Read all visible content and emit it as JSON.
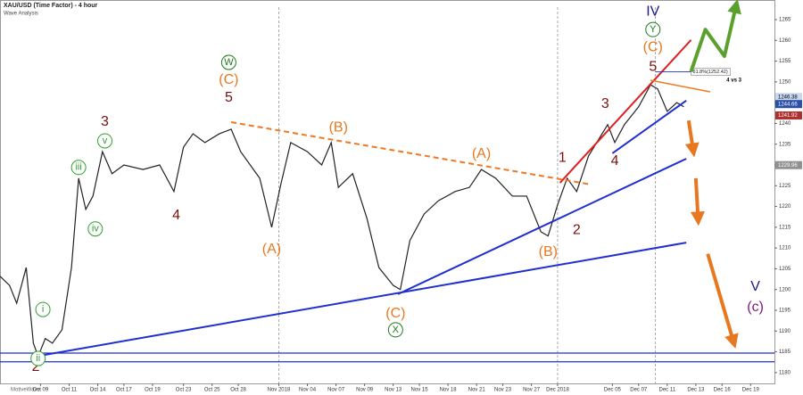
{
  "chart_data": {
    "type": "line",
    "title": "XAU/USD (Time Factor) - 4 hour",
    "subtitle": "Wave Analysis",
    "watermark": "MotiveWave",
    "xlim": [
      0,
      325
    ],
    "ylim": [
      1177.4,
      1268
    ],
    "xticks": [
      {
        "value": 17,
        "label": "Oct 09"
      },
      {
        "value": 29,
        "label": "Oct 11"
      },
      {
        "value": 41,
        "label": "Oct 14"
      },
      {
        "value": 52,
        "label": "Oct 17"
      },
      {
        "value": 64,
        "label": "Oct 19"
      },
      {
        "value": 77,
        "label": "Oct 23"
      },
      {
        "value": 89,
        "label": "Oct 25"
      },
      {
        "value": 100,
        "label": "Oct 28"
      },
      {
        "value": 117,
        "label": "Nov 2018"
      },
      {
        "value": 129,
        "label": "Nov 04"
      },
      {
        "value": 141,
        "label": "Nov 07"
      },
      {
        "value": 153,
        "label": "Nov 09"
      },
      {
        "value": 165,
        "label": "Nov 13"
      },
      {
        "value": 176,
        "label": "Nov 15"
      },
      {
        "value": 188,
        "label": "Nov 18"
      },
      {
        "value": 200,
        "label": "Nov 21"
      },
      {
        "value": 211,
        "label": "Nov 23"
      },
      {
        "value": 223,
        "label": "Nov 27"
      },
      {
        "value": 234,
        "label": "Dec 2018"
      },
      {
        "value": 257,
        "label": "Dec 05"
      },
      {
        "value": 268,
        "label": "Dec 07"
      },
      {
        "value": 280,
        "label": "Dec 11"
      },
      {
        "value": 292,
        "label": "Dec 13"
      },
      {
        "value": 303,
        "label": "Dec 16"
      },
      {
        "value": 315,
        "label": "Dec 19"
      }
    ],
    "yticks": [
      1180,
      1185,
      1190,
      1195,
      1200,
      1205,
      1210,
      1215,
      1220,
      1225,
      1230,
      1235,
      1240,
      1245,
      1250,
      1255,
      1260,
      1265
    ],
    "separators": [
      117,
      234,
      275
    ],
    "x": [
      0,
      4,
      7,
      11,
      14,
      16,
      19,
      22,
      26,
      30,
      33,
      36,
      39,
      43,
      47,
      52,
      60,
      67,
      73,
      77,
      81,
      86,
      92,
      97,
      101,
      109,
      114,
      118,
      122,
      129,
      135,
      139,
      142,
      148,
      154,
      159,
      165,
      168,
      172,
      178,
      184,
      191,
      197,
      202,
      208,
      215,
      221,
      227,
      230,
      234,
      238,
      242,
      247,
      255,
      258,
      262,
      268,
      273,
      276,
      280,
      284,
      287
    ],
    "series": [
      {
        "color": "#222222",
        "values": [
          1203.2,
          1201,
          1196.7,
          1205.3,
          1187.1,
          1183.9,
          1188.2,
          1187.1,
          1190.3,
          1205.3,
          1226.8,
          1219.3,
          1222.5,
          1233.2,
          1227.9,
          1230,
          1228.9,
          1230,
          1223.6,
          1234.3,
          1237.5,
          1235.4,
          1237.5,
          1238.6,
          1233.2,
          1226.8,
          1215,
          1225.7,
          1235.4,
          1233.2,
          1230,
          1235.4,
          1224.6,
          1227.9,
          1217.1,
          1205.3,
          1201,
          1200,
          1211.8,
          1218.2,
          1221.4,
          1223.6,
          1224.6,
          1228.9,
          1226.8,
          1222.5,
          1222.5,
          1213.9,
          1212.9,
          1220.4,
          1226.8,
          1223.6,
          1232.2,
          1239.7,
          1235.4,
          1239.7,
          1244,
          1249.3,
          1248.3,
          1242.9,
          1245,
          1244
        ]
      }
    ],
    "price_tags": [
      {
        "value": 1246.38,
        "color": "#c8d8f0"
      },
      {
        "value": 1244.66,
        "color": "#2a4fa8"
      },
      {
        "value": 1241.92,
        "color": "#b03030"
      },
      {
        "value": 1229.96,
        "color": "#909090"
      }
    ],
    "fib": {
      "value": 1252.42,
      "label": "61.8%(1252.42)",
      "x": [
        275,
        290
      ]
    },
    "trendlines": [
      {
        "color": "#1f2fd0",
        "width": 2,
        "points": [
          [
            15,
            1183.9
          ],
          [
            288,
            1211.3
          ]
        ]
      },
      {
        "color": "#1f2fd0",
        "width": 2,
        "points": [
          [
            167,
            1198.9
          ],
          [
            288,
            1231.5
          ]
        ]
      },
      {
        "color": "#1f2fd0",
        "width": 2,
        "points": [
          [
            257,
            1232.8
          ],
          [
            288,
            1245.5
          ]
        ]
      },
      {
        "color": "#1f2fd0",
        "width": 1.2,
        "points": [
          [
            0,
            1184.7
          ],
          [
            325,
            1184.7
          ]
        ]
      },
      {
        "color": "#1f2fd0",
        "width": 1.2,
        "points": [
          [
            0,
            1182.6
          ],
          [
            325,
            1182.6
          ]
        ]
      },
      {
        "color": "#f07820",
        "width": 2,
        "dash": true,
        "points": [
          [
            97,
            1240.3
          ],
          [
            248,
            1225.3
          ]
        ]
      },
      {
        "color": "#e02020",
        "width": 2,
        "points": [
          [
            235,
            1225.7
          ],
          [
            290,
            1260.1
          ]
        ]
      },
      {
        "color": "#f07820",
        "width": 1.5,
        "points": [
          [
            273,
            1250.4
          ],
          [
            298,
            1247.6
          ]
        ]
      }
    ],
    "arrows": [
      {
        "color": "#5aa02c",
        "points": [
          [
            290,
            1252.5
          ],
          [
            296,
            1262.6
          ],
          [
            304,
            1256.2
          ],
          [
            309,
            1268.6
          ]
        ]
      },
      {
        "color": "#e87820",
        "points": [
          [
            289,
            1240.7
          ],
          [
            291,
            1233.2
          ]
        ]
      },
      {
        "color": "#e87820",
        "points": [
          [
            292,
            1226.8
          ],
          [
            293,
            1216.7
          ]
        ]
      },
      {
        "color": "#e87820",
        "points": [
          [
            297,
            1208.6
          ],
          [
            308,
            1187.1
          ]
        ]
      }
    ],
    "annotations": [
      {
        "text": "2",
        "x": 15,
        "y": 1181.3,
        "color": "#7a1010"
      },
      {
        "text": "i",
        "x": 18,
        "y": 1195.2,
        "color": "#2ea02e",
        "circled": true
      },
      {
        "text": "ii",
        "x": 16,
        "y": 1183.4,
        "color": "#2ea02e",
        "circled": true
      },
      {
        "text": "iii",
        "x": 33,
        "y": 1229.4,
        "color": "#2ea02e",
        "circled": true
      },
      {
        "text": "iv",
        "x": 40,
        "y": 1214.6,
        "color": "#2ea02e",
        "circled": true
      },
      {
        "text": "v",
        "x": 44,
        "y": 1235.8,
        "color": "#2ea02e",
        "circled": true
      },
      {
        "text": "3",
        "x": 44,
        "y": 1240.3,
        "color": "#7a1010"
      },
      {
        "text": "4",
        "x": 74,
        "y": 1217.8,
        "color": "#7a1010"
      },
      {
        "text": "W",
        "x": 96,
        "y": 1254.7,
        "color": "#1a7a1a",
        "circled": true
      },
      {
        "text": "(C)",
        "x": 96,
        "y": 1250.4,
        "color": "#e87820"
      },
      {
        "text": "5",
        "x": 96,
        "y": 1246.1,
        "color": "#7a1010"
      },
      {
        "text": "(A)",
        "x": 114,
        "y": 1209.6,
        "color": "#e87820"
      },
      {
        "text": "(B)",
        "x": 142,
        "y": 1239,
        "color": "#e87820"
      },
      {
        "text": "(C)",
        "x": 166,
        "y": 1194.2,
        "color": "#e87820"
      },
      {
        "text": "X",
        "x": 166,
        "y": 1190.3,
        "color": "#1a7a1a",
        "circled": true
      },
      {
        "text": "(A)",
        "x": 202,
        "y": 1232.6,
        "color": "#e87820"
      },
      {
        "text": "1",
        "x": 236,
        "y": 1231.7,
        "color": "#7a1010"
      },
      {
        "text": "2",
        "x": 242,
        "y": 1214.3,
        "color": "#7a1010"
      },
      {
        "text": "(B)",
        "x": 230,
        "y": 1209,
        "color": "#e87820"
      },
      {
        "text": "3",
        "x": 254,
        "y": 1244.6,
        "color": "#7a1010"
      },
      {
        "text": "4",
        "x": 258,
        "y": 1230.9,
        "color": "#7a1010"
      },
      {
        "text": "5",
        "x": 274,
        "y": 1253.6,
        "color": "#7a1010"
      },
      {
        "text": "(C)",
        "x": 274,
        "y": 1258.3,
        "color": "#e87820"
      },
      {
        "text": "Y",
        "x": 274,
        "y": 1262.6,
        "color": "#1a7a1a",
        "circled": true
      },
      {
        "text": "IV",
        "x": 274,
        "y": 1266.9,
        "color": "#1a1a8a"
      },
      {
        "text": "V",
        "x": 317,
        "y": 1200.6,
        "color": "#1a1a8a"
      },
      {
        "text": "(c)",
        "x": 317,
        "y": 1195.7,
        "color": "#7a1a7a"
      },
      {
        "text": "4 vs 3",
        "x": 308,
        "y": 1250.4,
        "color": "#000000",
        "small": true
      }
    ]
  }
}
